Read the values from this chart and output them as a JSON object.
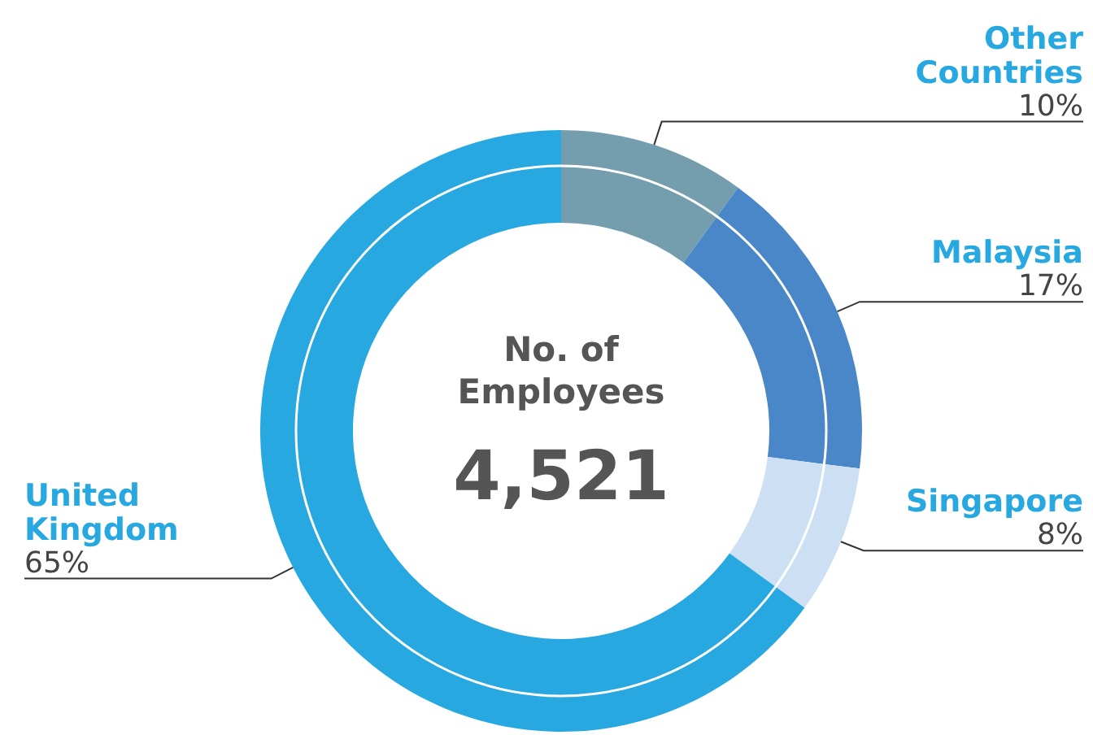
{
  "chart_data": {
    "type": "donut",
    "title": "No. of Employees",
    "annotations": [
      "4,521"
    ],
    "categories": [
      "Other Countries",
      "Malaysia",
      "Singapore",
      "United Kingdom"
    ],
    "values": [
      10,
      17,
      8,
      65
    ],
    "value_labels": [
      "10%",
      "17%",
      "8%",
      "65%"
    ],
    "colors": [
      "#749eae",
      "#4a87c8",
      "#cde0f3",
      "#27a8e0"
    ]
  }
}
